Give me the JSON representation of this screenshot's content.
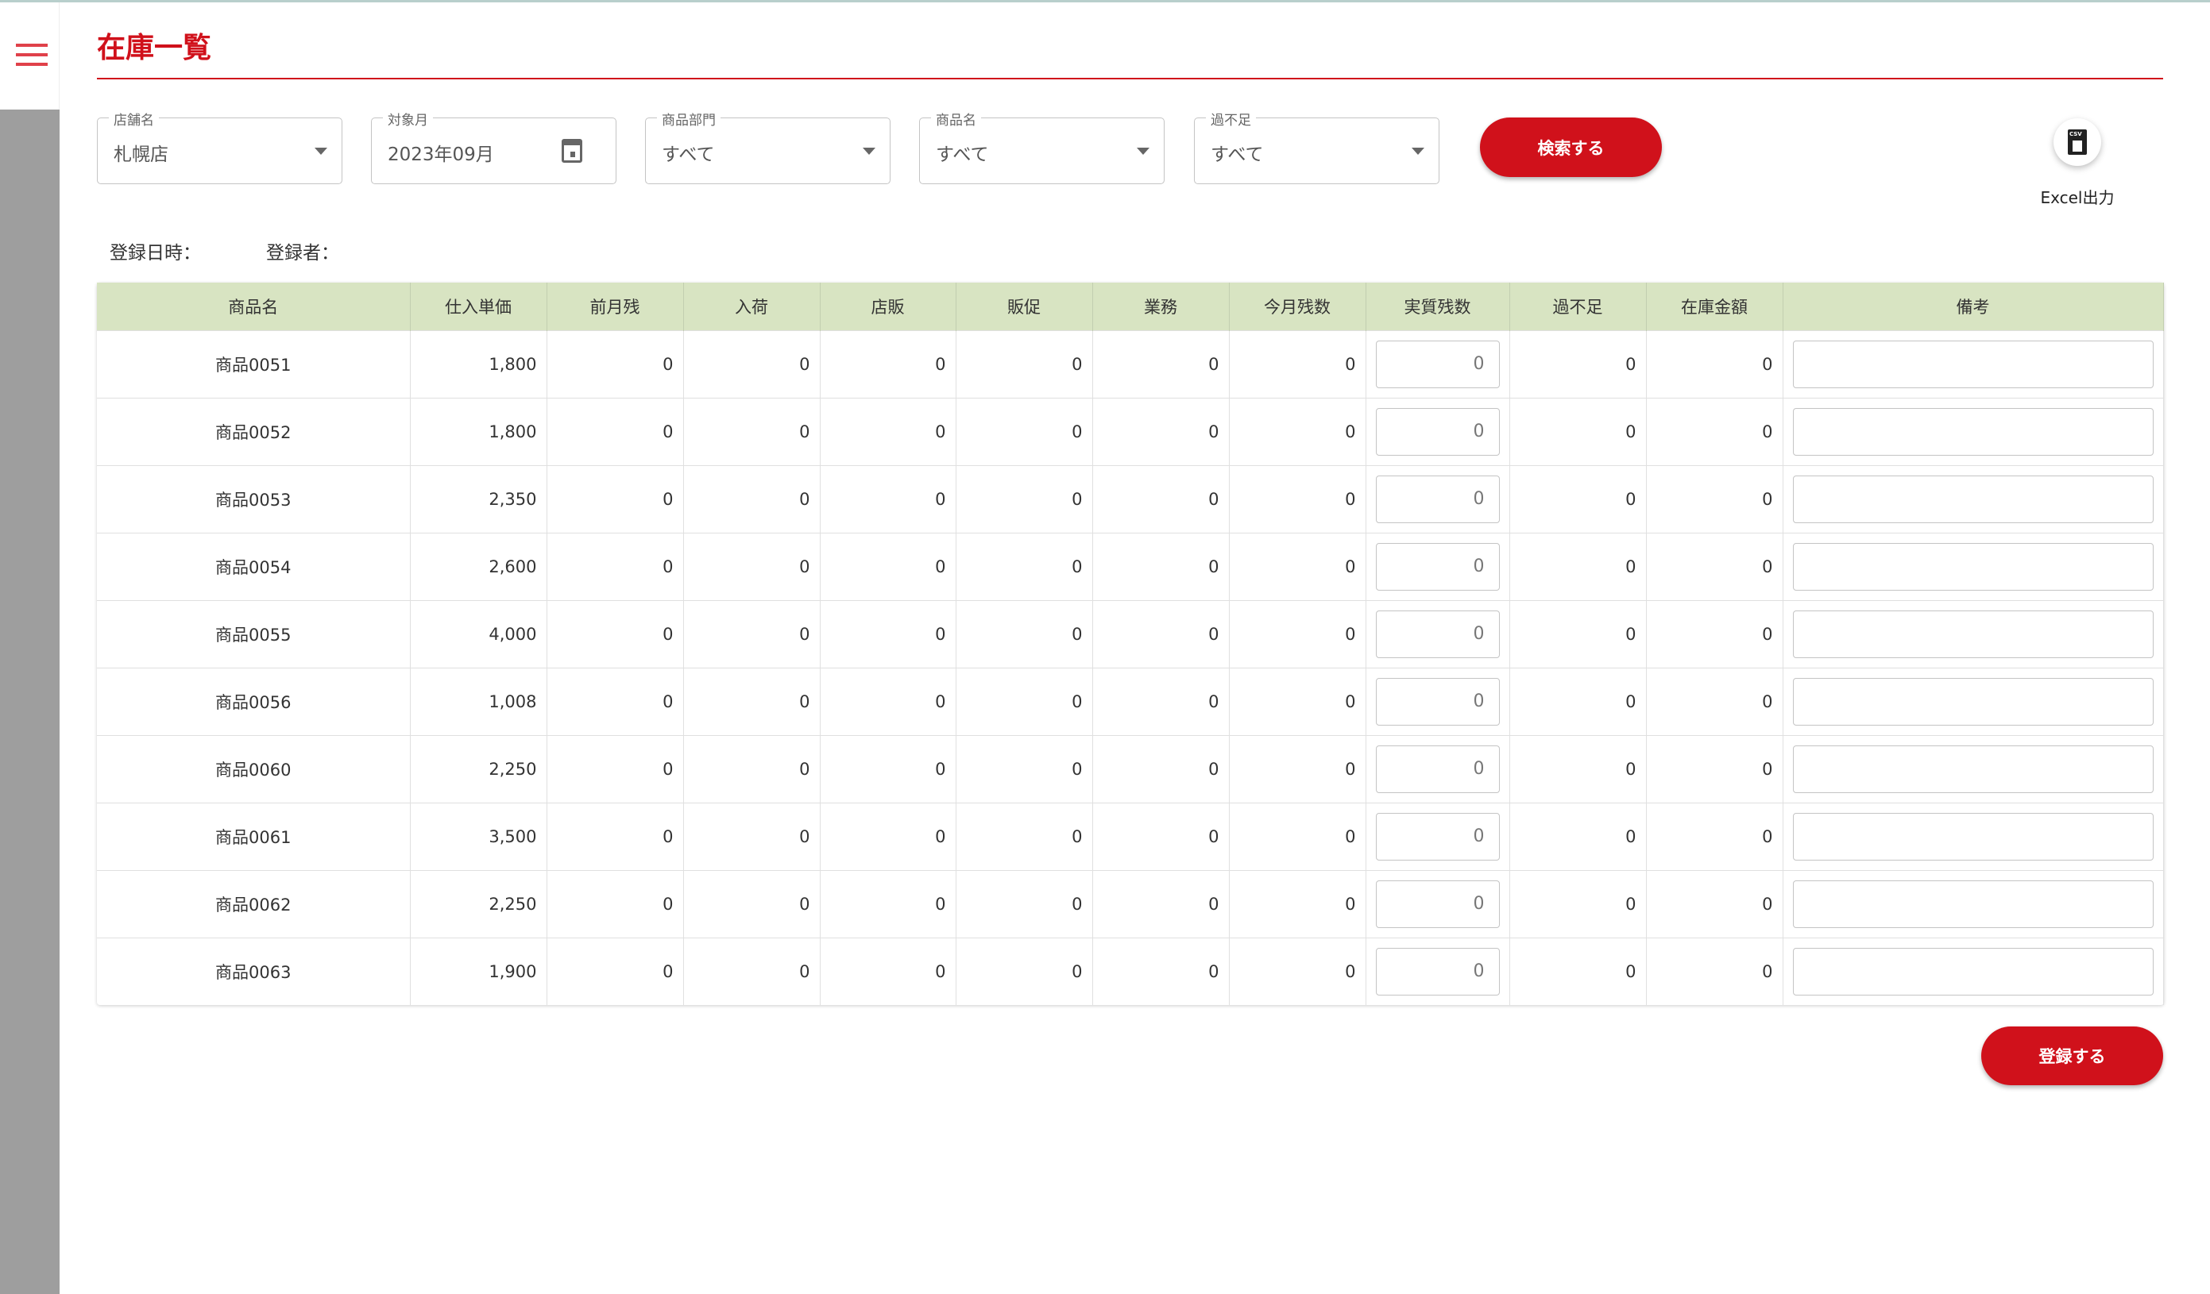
{
  "header": {
    "title": "在庫一覧"
  },
  "filters": [
    {
      "label": "店舗名",
      "value": "札幌店",
      "type": "select"
    },
    {
      "label": "対象月",
      "value": "2023年09月",
      "type": "date"
    },
    {
      "label": "商品部門",
      "value": "すべて",
      "type": "select"
    },
    {
      "label": "商品名",
      "value": "すべて",
      "type": "select"
    },
    {
      "label": "過不足",
      "value": "すべて",
      "type": "select"
    }
  ],
  "search_label": "検索する",
  "export": {
    "icon": "csv-download-icon",
    "icon_text": "CSV",
    "label": "Excel出力"
  },
  "meta": {
    "registered_at_label": "登録日時：",
    "registered_by_label": "登録者："
  },
  "table": {
    "columns": [
      "商品名",
      "仕入単価",
      "前月残",
      "入荷",
      "店販",
      "販促",
      "業務",
      "今月残数",
      "実質残数",
      "過不足",
      "在庫金額",
      "備考"
    ],
    "rows": [
      [
        "商品0051",
        "1,800",
        "0",
        "0",
        "0",
        "0",
        "0",
        "0",
        "0",
        "0",
        "0",
        ""
      ],
      [
        "商品0052",
        "1,800",
        "0",
        "0",
        "0",
        "0",
        "0",
        "0",
        "0",
        "0",
        "0",
        ""
      ],
      [
        "商品0053",
        "2,350",
        "0",
        "0",
        "0",
        "0",
        "0",
        "0",
        "0",
        "0",
        "0",
        ""
      ],
      [
        "商品0054",
        "2,600",
        "0",
        "0",
        "0",
        "0",
        "0",
        "0",
        "0",
        "0",
        "0",
        ""
      ],
      [
        "商品0055",
        "4,000",
        "0",
        "0",
        "0",
        "0",
        "0",
        "0",
        "0",
        "0",
        "0",
        ""
      ],
      [
        "商品0056",
        "1,008",
        "0",
        "0",
        "0",
        "0",
        "0",
        "0",
        "0",
        "0",
        "0",
        ""
      ],
      [
        "商品0060",
        "2,250",
        "0",
        "0",
        "0",
        "0",
        "0",
        "0",
        "0",
        "0",
        "0",
        ""
      ],
      [
        "商品0061",
        "3,500",
        "0",
        "0",
        "0",
        "0",
        "0",
        "0",
        "0",
        "0",
        "0",
        ""
      ],
      [
        "商品0062",
        "2,250",
        "0",
        "0",
        "0",
        "0",
        "0",
        "0",
        "0",
        "0",
        "0",
        ""
      ],
      [
        "商品0063",
        "1,900",
        "0",
        "0",
        "0",
        "0",
        "0",
        "0",
        "0",
        "0",
        "0",
        ""
      ]
    ]
  },
  "register_label": "登録する",
  "colors": {
    "accent": "#d0111b",
    "header_bg": "#d8e4c2",
    "sidebar": "#9e9e9e"
  }
}
